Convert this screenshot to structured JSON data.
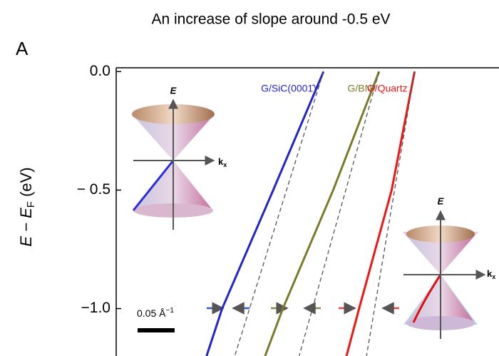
{
  "chart_data": {
    "type": "line",
    "title": "An increase of slope around -0.5 eV",
    "panel_label": "A",
    "ylabel_parts": [
      "E − E",
      "F",
      " (eV)"
    ],
    "ylim": [
      -1.2,
      0.01
    ],
    "yticks": [
      {
        "value": 0,
        "label": "0.0"
      },
      {
        "value": -0.5,
        "label": "− 0.5"
      },
      {
        "value": -1,
        "label": "−1.0"
      }
    ],
    "xlim": [
      0,
      0.52
    ],
    "scale_bar": {
      "length": 0.05,
      "label_parts": [
        "0.05 Å",
        "−1"
      ]
    },
    "insets": [
      {
        "labels": [
          "E",
          "k",
          "x"
        ]
      },
      {
        "labels": [
          "E",
          "k",
          "x"
        ]
      }
    ],
    "series": [
      {
        "name": "G/SiC(0001̄)",
        "color": "#2424c8",
        "x": [
          0.283,
          0.215,
          0.146,
          0.125
        ],
        "values": [
          0,
          -0.5,
          -1,
          -1.2
        ]
      },
      {
        "name": "G/BN",
        "color": "#7c7a2c",
        "x": [
          0.358,
          0.296,
          0.228,
          0.204
        ],
        "values": [
          0,
          -0.5,
          -1,
          -1.2
        ]
      },
      {
        "name": "G/Quartz",
        "color": "#f01414",
        "x": [
          0.406,
          0.375,
          0.331,
          0.314
        ],
        "values": [
          0,
          -0.5,
          -1,
          -1.2
        ]
      },
      {
        "color": "#555555",
        "dashed": true,
        "x": [
          0.283,
          0.163
        ],
        "values": [
          0,
          -1.2
        ]
      },
      {
        "color": "#555555",
        "dashed": true,
        "x": [
          0.358,
          0.25
        ],
        "values": [
          0,
          -1.2
        ]
      },
      {
        "color": "#555555",
        "dashed": true,
        "x": [
          0.406,
          0.341
        ],
        "values": [
          0,
          -1.2
        ]
      }
    ]
  }
}
